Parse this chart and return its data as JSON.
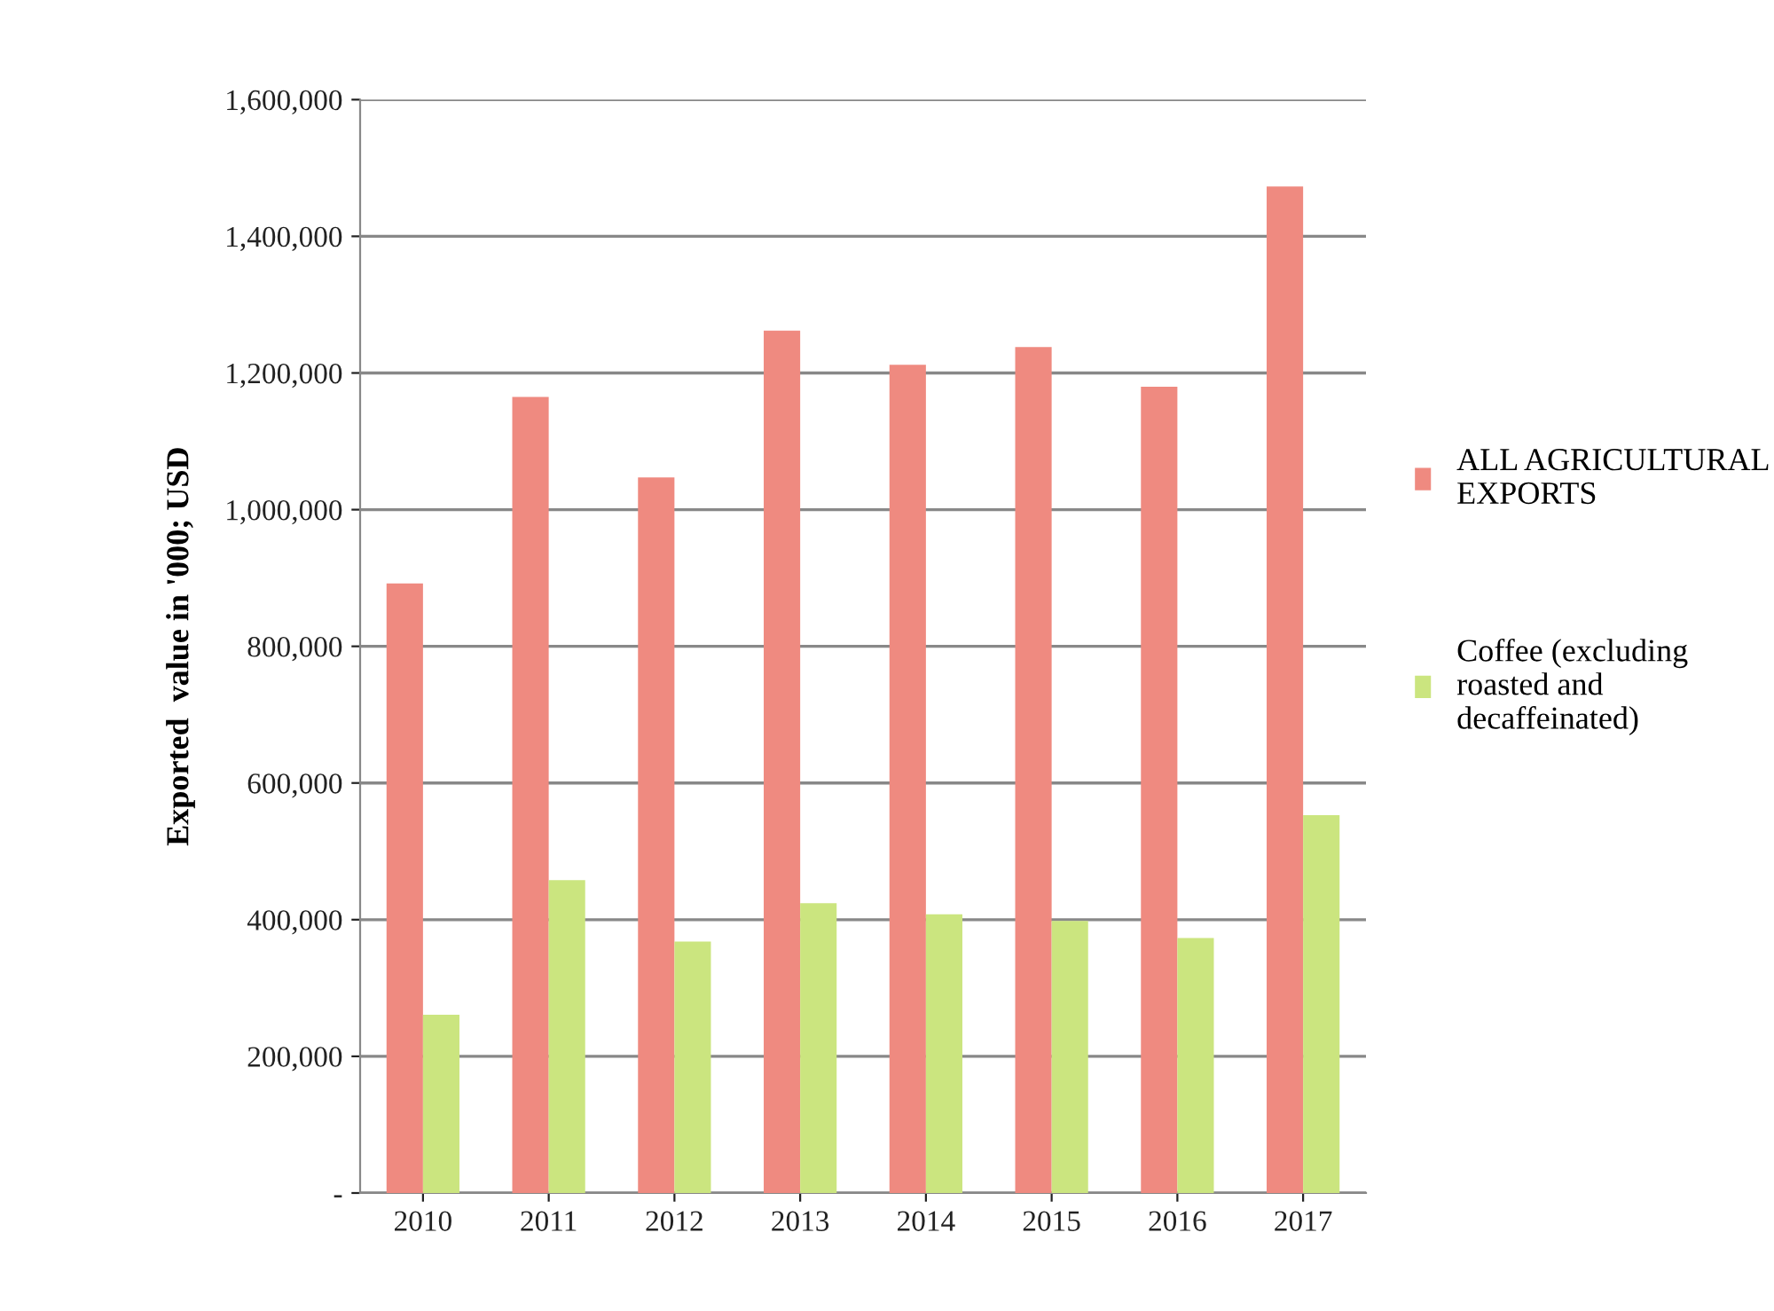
{
  "chart_data": {
    "type": "bar",
    "ylabel": "Exported  value in '000; USD",
    "categories": [
      "2010",
      "2011",
      "2012",
      "2013",
      "2014",
      "2015",
      "2016",
      "2017"
    ],
    "series": [
      {
        "name": "ALL AGRICULTURAL EXPORTS",
        "color": "#ef8a80",
        "values": [
          892000,
          1165000,
          1047000,
          1262000,
          1212000,
          1238000,
          1180000,
          1473000
        ]
      },
      {
        "name": "Coffee (excluding roasted and decaffeinated)",
        "color": "#cbe57f",
        "values": [
          261000,
          458000,
          368000,
          424000,
          408000,
          398000,
          373000,
          553000
        ]
      }
    ],
    "ylim": [
      0,
      1600000
    ],
    "yticks": [
      {
        "value": 0,
        "label": "-"
      },
      {
        "value": 200000,
        "label": "200,000"
      },
      {
        "value": 400000,
        "label": "400,000"
      },
      {
        "value": 600000,
        "label": "600,000"
      },
      {
        "value": 800000,
        "label": "800,000"
      },
      {
        "value": 1000000,
        "label": "1,000,000"
      },
      {
        "value": 1200000,
        "label": "1,200,000"
      },
      {
        "value": 1400000,
        "label": "1,400,000"
      },
      {
        "value": 1600000,
        "label": "1,600,000"
      }
    ],
    "grid": "y",
    "legend": "right"
  }
}
